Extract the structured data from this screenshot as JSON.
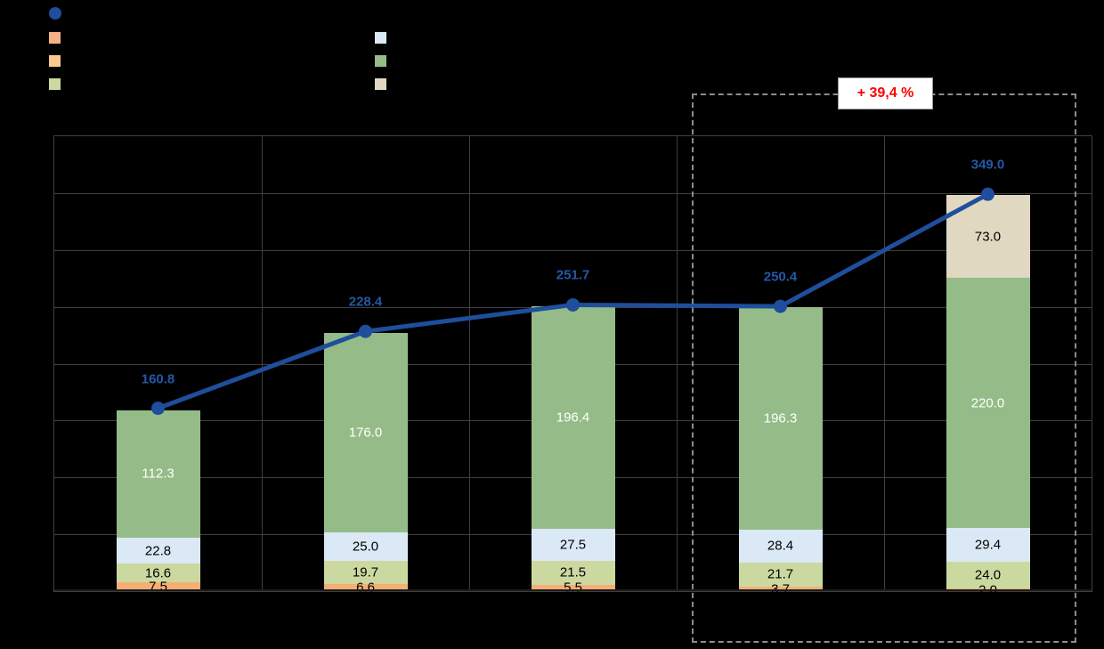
{
  "legend": {
    "items": [
      {
        "name": "total-line",
        "shape": "circle",
        "color": "#1F4E9C",
        "column": 0,
        "row": 0
      },
      {
        "name": "salmon",
        "shape": "square",
        "color": "#F4B183",
        "column": 0,
        "row": 1
      },
      {
        "name": "orange",
        "shape": "square",
        "color": "#FBC88E",
        "column": 0,
        "row": 2
      },
      {
        "name": "light-green",
        "shape": "square",
        "color": "#CBD9A0",
        "column": 0,
        "row": 3
      },
      {
        "name": "light-blue",
        "shape": "square",
        "color": "#DAE9F5",
        "column": 1,
        "row": 1
      },
      {
        "name": "green",
        "shape": "square",
        "color": "#95BC88",
        "column": 1,
        "row": 2
      },
      {
        "name": "beige",
        "shape": "square",
        "color": "#E1D8C1",
        "column": 1,
        "row": 3
      }
    ]
  },
  "annotation": {
    "text": "+ 39,4 %",
    "text_color": "#FF0000",
    "background": "#FFFFFF"
  },
  "chart_data": {
    "type": "bar",
    "subtype": "stacked-bars-with-total-line",
    "title": "",
    "xlabel": "",
    "ylabel": "",
    "categories": [
      "",
      "",
      "",
      "",
      ""
    ],
    "ylim": [
      0,
      400
    ],
    "grid_step": 50,
    "grid": true,
    "legend_position": "top-left",
    "series": [
      {
        "name": "orange-segment",
        "color": "#F5AE73",
        "label_color": "#000000",
        "values": [
          7.5,
          6.6,
          5.5,
          3.7,
          2.0
        ]
      },
      {
        "name": "light-green-segment",
        "color": "#CBD9A0",
        "label_color": "#000000",
        "values": [
          16.6,
          19.7,
          21.5,
          21.7,
          24.0
        ]
      },
      {
        "name": "light-blue-segment",
        "color": "#DAE9F5",
        "label_color": "#000000",
        "values": [
          22.8,
          25.0,
          27.5,
          28.4,
          29.4
        ]
      },
      {
        "name": "green-segment",
        "color": "#95BC88",
        "label_color": "#FFFFFF",
        "values": [
          112.3,
          176.0,
          196.4,
          196.3,
          220.0
        ]
      },
      {
        "name": "beige-segment",
        "color": "#E1D8C1",
        "label_color": "#000000",
        "values": [
          0,
          0,
          0,
          0,
          73.0
        ]
      }
    ],
    "line_series": {
      "name": "total-line",
      "color": "#1F4E9C",
      "label_color": "#2458A8",
      "values": [
        160.8,
        228.4,
        251.7,
        250.4,
        349.0
      ]
    },
    "highlight": {
      "categories_covered": [
        3,
        4
      ],
      "label": "+ 39,4 %"
    }
  }
}
